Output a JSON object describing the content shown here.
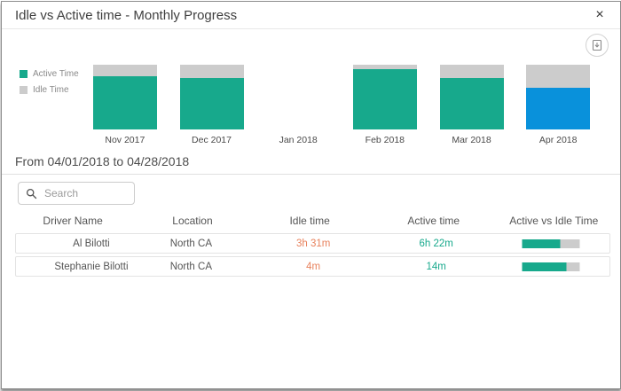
{
  "header": {
    "title": "Idle vs Active time - Monthly Progress",
    "close_glyph": "×"
  },
  "toolbar": {
    "export_icon": "export-chart-icon"
  },
  "chart_data": {
    "type": "bar",
    "subtype": "stacked-percent",
    "title": "Idle vs Active time - Monthly Progress",
    "categories": [
      "Nov 2017",
      "Dec 2017",
      "Jan 2018",
      "Feb 2018",
      "Mar 2018",
      "Apr 2018"
    ],
    "series": [
      {
        "name": "Active Time",
        "color": "#17A98C",
        "values": [
          82,
          79.5,
          null,
          93,
          79.5,
          64.5
        ]
      },
      {
        "name": "Idle Time",
        "color": "#CCCCCC",
        "values": [
          18,
          20.5,
          null,
          7,
          20.5,
          35.5
        ]
      }
    ],
    "highlight": {
      "index": 5,
      "color": "#0991DB",
      "meaning": "selected-month"
    },
    "unit": "percent",
    "ylim": [
      0,
      100
    ],
    "legend_position": "left",
    "grid": false
  },
  "filter": {
    "range_label": "From 04/01/2018 to 04/28/2018"
  },
  "search": {
    "placeholder": "Search",
    "value": ""
  },
  "table": {
    "headers": [
      "Driver Name",
      "Location",
      "Idle time",
      "Active time",
      "Active vs Idle Time"
    ],
    "rows": [
      {
        "driver": "Al Bilotti",
        "location": "North CA",
        "idle_time": "3h 31m",
        "active_time": "6h 22m",
        "active_pct": 66
      },
      {
        "driver": "Stephanie Bilotti",
        "location": "North CA",
        "idle_time": "4m",
        "active_time": "14m",
        "active_pct": 77
      }
    ],
    "colors": {
      "idle_value": "#E8825D",
      "active_value": "#17A98C",
      "bar_fill": "#17A98C",
      "bar_bg": "#CCCCCC"
    }
  }
}
